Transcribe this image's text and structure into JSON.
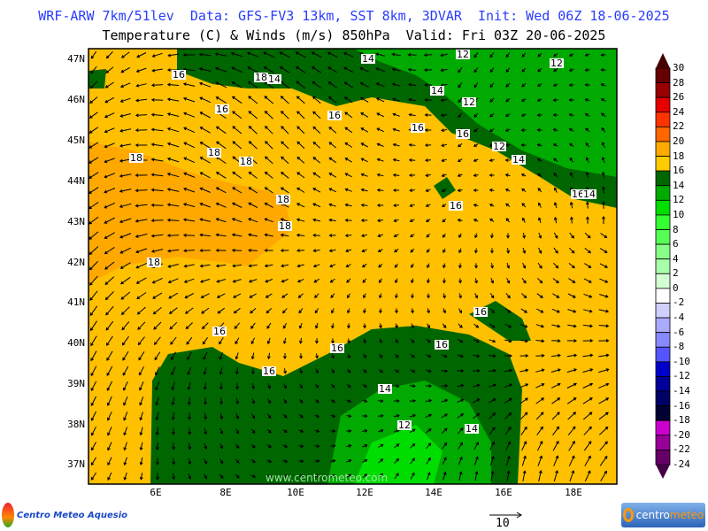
{
  "header": {
    "line1": "WRF-ARW 7km/51lev  Data: GFS-FV3 13km, SST 8km, 3DVAR  Init: Wed 06Z 18-06-2025",
    "line2": "Temperature (C) & Winds (m/s) 850hPa  Valid: Fri 03Z 20-06-2025"
  },
  "map": {
    "lat_labels": [
      "47N",
      "46N",
      "45N",
      "44N",
      "43N",
      "42N",
      "41N",
      "40N",
      "39N",
      "38N",
      "37N"
    ],
    "lon_labels": [
      "6E",
      "8E",
      "10E",
      "12E",
      "14E",
      "16E",
      "18E"
    ],
    "contour_labels": [
      "16",
      "18",
      "14",
      "14",
      "12",
      "12",
      "16",
      "14",
      "12",
      "16",
      "16",
      "16",
      "12",
      "18",
      "18",
      "18",
      "14",
      "16",
      "14",
      "18",
      "16",
      "18",
      "18",
      "16",
      "16",
      "16",
      "16",
      "16",
      "14",
      "12",
      "14"
    ],
    "watermark": "www.centrometeo.com",
    "fill_colors": {
      "t18_20": "#ffaa00",
      "t16_18": "#ffcc00",
      "t14_16": "#006600",
      "t12_14": "#00aa00",
      "t10_12": "#00dd00"
    }
  },
  "colorbar": {
    "labels": [
      "30",
      "28",
      "26",
      "24",
      "22",
      "20",
      "18",
      "16",
      "14",
      "12",
      "10",
      "8",
      "6",
      "4",
      "2",
      "0",
      "-2",
      "-4",
      "-6",
      "-8",
      "-10",
      "-12",
      "-14",
      "-16",
      "-18",
      "-20",
      "-22",
      "-24"
    ],
    "colors": [
      "#660000",
      "#990000",
      "#e60000",
      "#ff3300",
      "#ff6600",
      "#ffaa00",
      "#ffcc00",
      "#006600",
      "#00aa00",
      "#00dd00",
      "#33ff33",
      "#55ff55",
      "#88ff88",
      "#aaffaa",
      "#d4ffd4",
      "#ffffff",
      "#d0d0ff",
      "#aaaaff",
      "#8888ff",
      "#5555ff",
      "#0000cc",
      "#000099",
      "#000066",
      "#000033",
      "#cc00cc",
      "#990099",
      "#660066"
    ],
    "top_arrow_color": "#440000",
    "bottom_arrow_color": "#440044"
  },
  "wind_reference": {
    "label": "10"
  },
  "logos": {
    "left": "Centro Meteo Aquesio",
    "right_a": "centro",
    "right_b": "meteo"
  }
}
